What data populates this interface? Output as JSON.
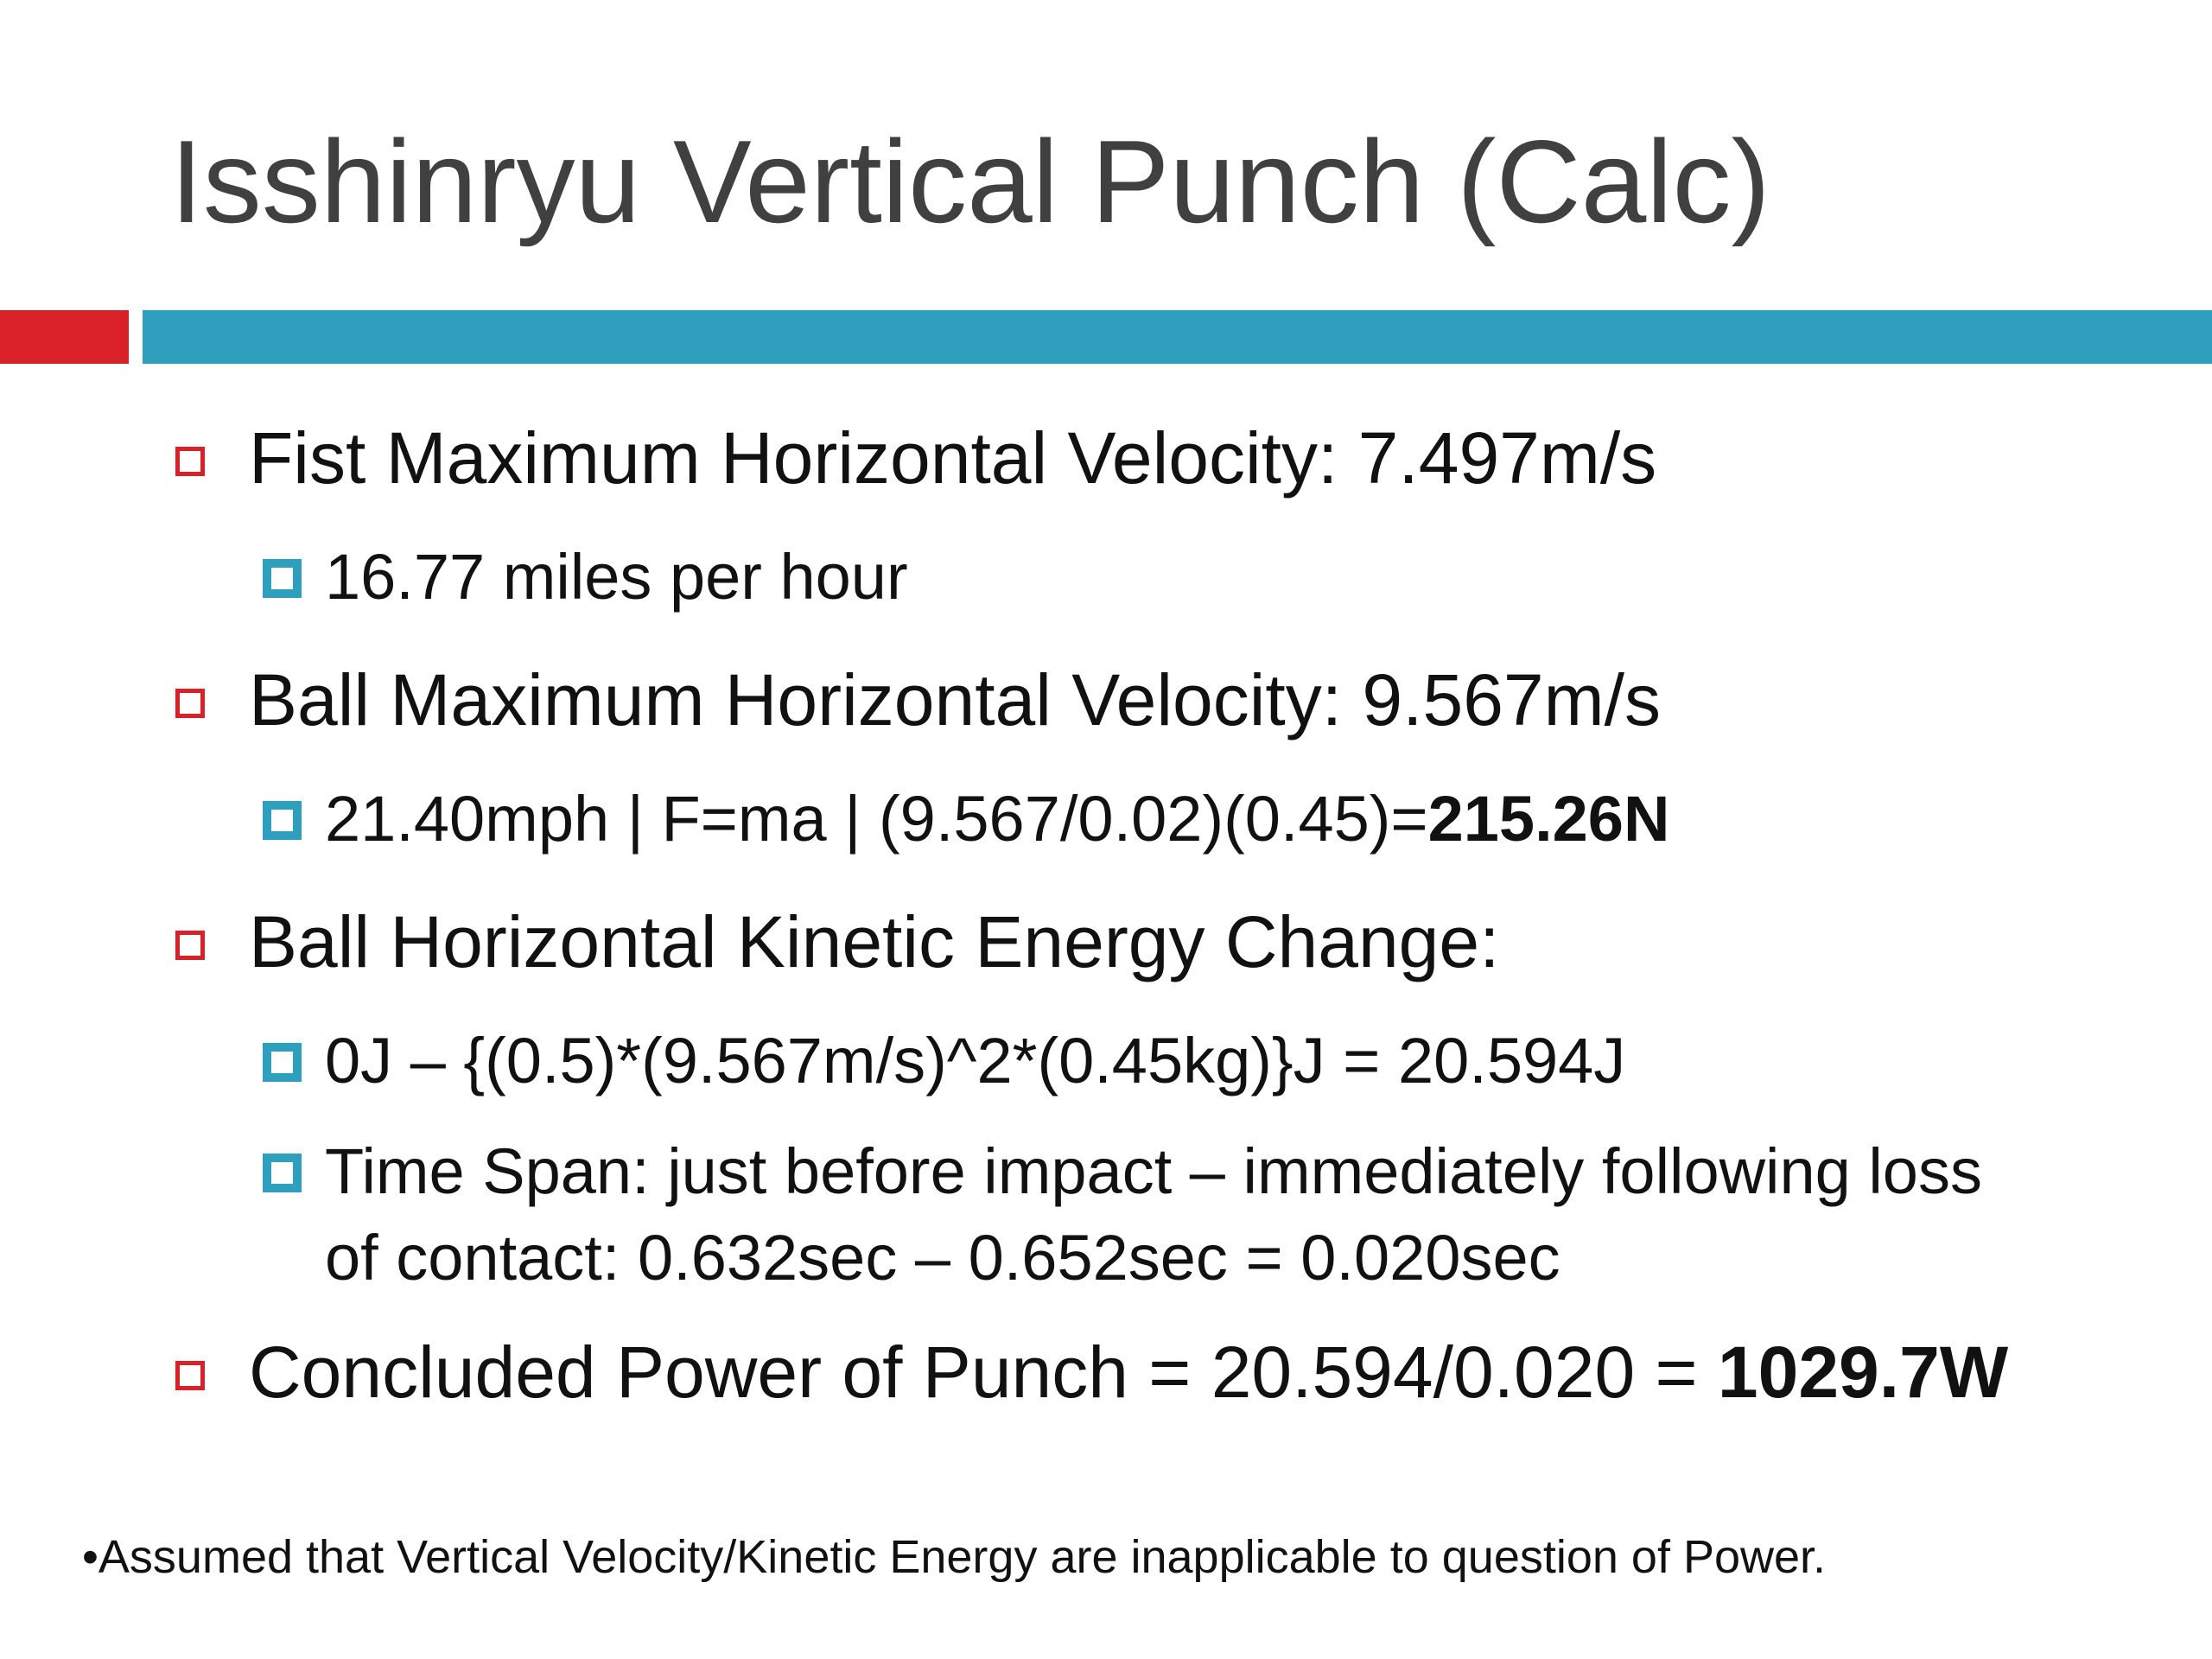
{
  "slide": {
    "title": "Isshinryu Vertical Punch (Calc)",
    "colors": {
      "accent_red": "#da2028",
      "accent_blue": "#2ea0bd",
      "title_gray": "#404040"
    },
    "bullets": [
      {
        "level": 1,
        "text": "Fist Maximum Horizontal Velocity: 7.497m/s"
      },
      {
        "level": 2,
        "text": "16.77 miles per hour"
      },
      {
        "level": 1,
        "text": "Ball Maximum Horizontal Velocity: 9.567m/s"
      },
      {
        "level": 2,
        "text": "21.40mph | F=ma | (9.567/0.02)(0.45)=",
        "bold": "215.26N"
      },
      {
        "level": 1,
        "text": "Ball Horizontal Kinetic Energy Change:"
      },
      {
        "level": 2,
        "text": "0J – {(0.5)*(9.567m/s)^2*(0.45kg)}J = 20.594J"
      },
      {
        "level": 2,
        "text": "Time Span: just before impact – immediately following loss",
        "continuation": "of contact: 0.632sec – 0.652sec = 0.020sec"
      },
      {
        "level": 1,
        "text": "Concluded Power of Punch = 20.594/0.020 = ",
        "bold": "1029.7W"
      }
    ],
    "footnote": "•Assumed that Vertical Velocity/Kinetic Energy are inapplicable to question of Power."
  }
}
